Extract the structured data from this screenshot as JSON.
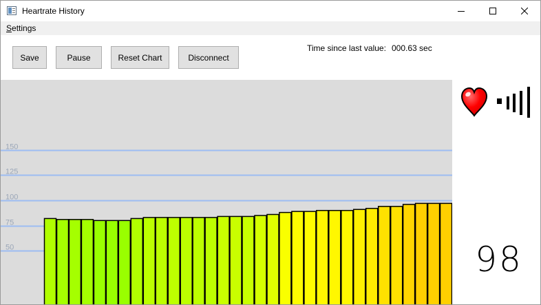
{
  "window": {
    "title": "Heartrate History",
    "icon": "app-window-icon"
  },
  "window_controls": {
    "minimize_icon": "minimize-icon",
    "maximize_icon": "maximize-icon",
    "close_icon": "close-icon"
  },
  "menu": {
    "settings_label": "Settings"
  },
  "toolbar": {
    "save_label": "Save",
    "pause_label": "Pause",
    "reset_label": "Reset Chart",
    "disconnect_label": "Disconnect"
  },
  "status": {
    "time_label": "Time since last value:",
    "time_value": "000.63 sec"
  },
  "indicators": {
    "heart_icon": "heart-icon",
    "heart_color": "#ff0000",
    "signal_icon": "signal-strength-icon",
    "signal_level_bars": 5
  },
  "current_bpm": "98",
  "colors": {
    "chart_background": "#dcdcdc",
    "gridline": "#9dbcf2",
    "low_bar": "#99ff00",
    "high_bar": "#ffd000"
  },
  "chart_data": {
    "type": "bar",
    "title": "",
    "xlabel": "",
    "ylabel": "",
    "ylim": [
      0,
      200
    ],
    "y_ticks": [
      "50",
      "75",
      "100",
      "125",
      "150"
    ],
    "grid": true,
    "values": [
      82,
      81,
      81,
      81,
      80,
      80,
      80,
      82,
      83,
      83,
      83,
      83,
      83,
      83,
      84,
      84,
      84,
      85,
      86,
      88,
      89,
      89,
      90,
      90,
      90,
      91,
      92,
      94,
      94,
      96,
      97,
      97,
      97
    ]
  }
}
